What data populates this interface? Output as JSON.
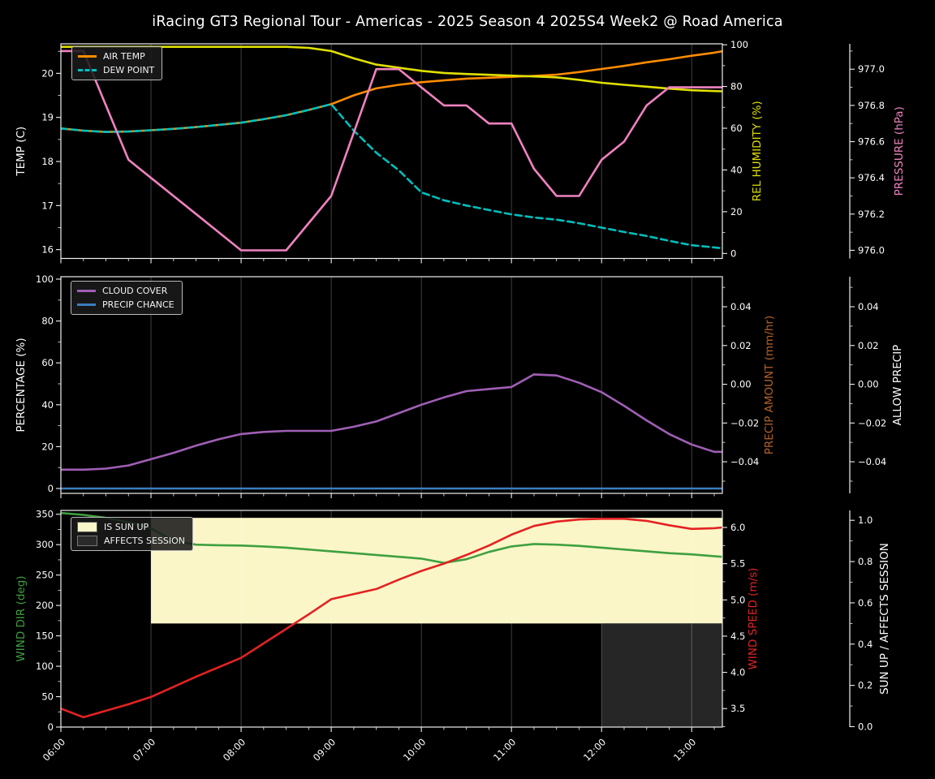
{
  "title": "iRacing GT3 Regional Tour - Americas - 2025 Season 4 2025S4 Week2 @ Road America",
  "x_axis": {
    "tick_hours": [
      6,
      7,
      8,
      9,
      10,
      11,
      12,
      13
    ],
    "tick_labels": [
      "06:00",
      "07:00",
      "08:00",
      "09:00",
      "10:00",
      "11:00",
      "12:00",
      "13:00"
    ],
    "range_hours": [
      6.0,
      13.34
    ]
  },
  "x_hours": [
    6.0,
    6.25,
    6.5,
    6.75,
    7.0,
    7.25,
    7.5,
    7.75,
    8.0,
    8.25,
    8.5,
    8.75,
    9.0,
    9.25,
    9.5,
    9.75,
    10.0,
    10.25,
    10.5,
    10.75,
    11.0,
    11.25,
    11.5,
    11.75,
    12.0,
    12.25,
    12.5,
    12.75,
    13.0,
    13.25,
    13.34
  ],
  "chart_data": [
    {
      "type": "line",
      "panel": "temperature-humidity-pressure",
      "legend": [
        "AIR TEMP",
        "DEW POINT"
      ],
      "axes": {
        "left": {
          "label": "TEMP (C)",
          "color": "#ffffff",
          "ticks": [
            16,
            17,
            18,
            19,
            20
          ],
          "tick_labels": [
            "16",
            "17",
            "18",
            "19",
            "20"
          ],
          "range": [
            15.8,
            20.67
          ]
        },
        "right1": {
          "label": "REL HUMIDITY (%)",
          "color": "#e0e000",
          "ticks": [
            0,
            20,
            40,
            60,
            80,
            100
          ],
          "tick_labels": [
            "0",
            "20",
            "40",
            "60",
            "80",
            "100"
          ],
          "range": [
            -2.4,
            100.45
          ]
        },
        "right2": {
          "label": "PRESSURE (hPa)",
          "color": "#f082c0",
          "ticks": [
            976.0,
            976.2,
            976.4,
            976.6,
            976.8,
            977.0
          ],
          "tick_labels": [
            "976.0",
            "976.2",
            "976.4",
            "976.6",
            "976.8",
            "977.0"
          ],
          "range": [
            975.955,
            977.14
          ]
        }
      },
      "series": [
        {
          "name": "AIR TEMP",
          "axis": "left",
          "color": "#ff8c00",
          "style": "solid",
          "values": [
            18.75,
            18.7,
            18.67,
            18.68,
            18.71,
            18.74,
            18.78,
            18.83,
            18.88,
            18.96,
            19.05,
            19.17,
            19.3,
            19.5,
            19.66,
            19.74,
            19.8,
            19.84,
            19.88,
            19.9,
            19.92,
            19.94,
            19.97,
            20.03,
            20.1,
            20.17,
            20.25,
            20.32,
            20.4,
            20.47,
            20.5
          ]
        },
        {
          "name": "DEW POINT",
          "axis": "left",
          "color": "#00bfbf",
          "style": "dashed",
          "values": [
            18.75,
            18.7,
            18.67,
            18.68,
            18.71,
            18.74,
            18.78,
            18.83,
            18.88,
            18.96,
            19.05,
            19.17,
            19.3,
            18.7,
            18.2,
            17.8,
            17.3,
            17.12,
            17.0,
            16.9,
            16.8,
            16.73,
            16.68,
            16.6,
            16.5,
            16.4,
            16.31,
            16.2,
            16.1,
            16.05,
            16.03
          ]
        },
        {
          "name": "REL HUMIDITY",
          "axis": "right1",
          "color": "#e0e000",
          "style": "solid",
          "values": [
            99,
            99,
            99,
            99,
            99,
            99,
            99,
            99,
            99,
            99,
            99,
            98.5,
            97,
            93.5,
            90.5,
            89,
            87.5,
            86.5,
            86,
            85.6,
            85.2,
            84.8,
            84.4,
            83.2,
            81.8,
            80.8,
            79.9,
            79,
            78.2,
            77.8,
            77.7
          ]
        },
        {
          "name": "PRESSURE",
          "axis": "right2",
          "color": "#f082c0",
          "style": "solid",
          "values": [
            977.1,
            977.1,
            976.8,
            976.5,
            976.4,
            976.3,
            976.2,
            976.1,
            976.0,
            976.0,
            976.0,
            976.15,
            976.3,
            976.65,
            977.0,
            977.0,
            976.9,
            976.8,
            976.8,
            976.7,
            976.7,
            976.45,
            976.3,
            976.3,
            976.5,
            976.6,
            976.8,
            976.9,
            976.9,
            976.9,
            976.9
          ]
        }
      ]
    },
    {
      "type": "line",
      "panel": "cloud-precip",
      "legend": [
        "CLOUD COVER",
        "PRECIP CHANCE"
      ],
      "axes": {
        "left": {
          "label": "PERCENTAGE (%)",
          "color": "#ffffff",
          "ticks": [
            0,
            20,
            40,
            60,
            80,
            100
          ],
          "tick_labels": [
            "0",
            "20",
            "40",
            "60",
            "80",
            "100"
          ],
          "range": [
            -2.33,
            101.16
          ]
        },
        "right1": {
          "label": "PRECIP AMOUNT (mm/hr)",
          "color": "#b5622a",
          "ticks": [
            -0.04,
            -0.02,
            0.0,
            0.02,
            0.04
          ],
          "tick_labels": [
            "−0.04",
            "−0.02",
            "0.00",
            "0.02",
            "0.04"
          ],
          "range": [
            -0.0563,
            0.0555
          ]
        },
        "right2": {
          "label": "ALLOW PRECIP",
          "color": "#ffffff",
          "ticks": [
            -0.04,
            -0.02,
            0.0,
            0.02,
            0.04
          ],
          "tick_labels": [
            "−0.04",
            "−0.02",
            "0.00",
            "0.02",
            "0.04"
          ],
          "range": [
            -0.0563,
            0.0555
          ]
        }
      },
      "series": [
        {
          "name": "CLOUD COVER",
          "axis": "left",
          "color": "#a05fb5",
          "style": "solid",
          "values": [
            9,
            9,
            9.5,
            11,
            14,
            17,
            20.5,
            23.5,
            26,
            27,
            27.5,
            27.5,
            27.5,
            29.5,
            32,
            36,
            40,
            43.5,
            46.5,
            47.5,
            48.5,
            54.5,
            54,
            50.5,
            46,
            39.5,
            32.5,
            26,
            21,
            17.5,
            17.5
          ]
        },
        {
          "name": "PRECIP CHANCE",
          "axis": "left",
          "color": "#3a7ebf",
          "style": "solid",
          "values": [
            0,
            0,
            0,
            0,
            0,
            0,
            0,
            0,
            0,
            0,
            0,
            0,
            0,
            0,
            0,
            0,
            0,
            0,
            0,
            0,
            0,
            0,
            0,
            0,
            0,
            0,
            0,
            0,
            0,
            0,
            0
          ]
        }
      ]
    },
    {
      "type": "line",
      "panel": "wind-sun",
      "legend": [
        "IS SUN UP",
        "AFFECTS SESSION"
      ],
      "axes": {
        "left": {
          "label": "WIND DIR (deg)",
          "color": "#3fa03f",
          "ticks": [
            0,
            50,
            100,
            150,
            200,
            250,
            300,
            350
          ],
          "tick_labels": [
            "0",
            "50",
            "100",
            "150",
            "200",
            "250",
            "300",
            "350"
          ],
          "range": [
            0,
            356.3
          ]
        },
        "right1": {
          "label": "WIND SPEED (m/s)",
          "color": "#e32222",
          "ticks": [
            3.5,
            4.0,
            4.5,
            5.0,
            5.5,
            6.0
          ],
          "tick_labels": [
            "3.5",
            "4.0",
            "4.5",
            "5.0",
            "5.5",
            "6.0"
          ],
          "range": [
            3.245,
            6.235
          ]
        },
        "right2": {
          "label": "SUN UP / AFFECTS SESSION",
          "color": "#ffffff",
          "ticks": [
            0.0,
            0.2,
            0.4,
            0.6,
            0.8,
            1.0
          ],
          "tick_labels": [
            "0.0",
            "0.2",
            "0.4",
            "0.6",
            "0.8",
            "1.0"
          ],
          "range": [
            -0.002,
            1.048
          ]
        }
      },
      "bands": [
        {
          "name": "IS SUN UP",
          "axis": "right2",
          "x_start": 7.0,
          "x_end": 13.34,
          "y_low": 0.5,
          "y_high": 1.012,
          "color": "#faf6c8"
        },
        {
          "name": "AFFECTS SESSION",
          "axis": "right2",
          "x_start": 12.0,
          "x_end": 13.34,
          "y_low": 0.0,
          "y_high": 0.5,
          "color": "#262626"
        }
      ],
      "series": [
        {
          "name": "WIND DIR",
          "axis": "left",
          "color": "#3fa03f",
          "style": "solid",
          "values": [
            352,
            349,
            344,
            337,
            327,
            306,
            300,
            299,
            298.5,
            297,
            295,
            292,
            289,
            286,
            283,
            280,
            277,
            270,
            276,
            288,
            297,
            301,
            300,
            298,
            295,
            292,
            289,
            286,
            284,
            281,
            280
          ]
        },
        {
          "name": "WIND SPEED",
          "axis": "right1",
          "color": "#e32222",
          "style": "solid",
          "values": [
            3.5,
            3.38,
            3.47,
            3.56,
            3.66,
            3.8,
            3.94,
            4.07,
            4.2,
            4.4,
            4.6,
            4.8,
            5.01,
            5.08,
            5.15,
            5.28,
            5.4,
            5.5,
            5.62,
            5.75,
            5.9,
            6.02,
            6.08,
            6.11,
            6.12,
            6.12,
            6.09,
            6.03,
            5.98,
            5.99,
            6.0
          ]
        }
      ]
    }
  ],
  "legend_colors": {
    "air_temp": "#ff8c00",
    "dew_point": "#00bfbf",
    "cloud_cover": "#a05fb5",
    "precip_chance": "#3a7ebf",
    "is_sun_up": "#faf6c8",
    "affects_session": "#2a2a2a"
  }
}
